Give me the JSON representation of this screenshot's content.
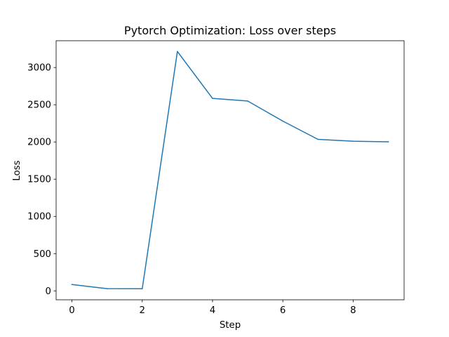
{
  "chart_data": {
    "type": "line",
    "title": "Pytorch Optimization: Loss over steps",
    "xlabel": "Step",
    "ylabel": "Loss",
    "x": [
      0,
      1,
      2,
      3,
      4,
      5,
      6,
      7,
      8,
      9
    ],
    "series": [
      {
        "values": [
          85,
          30,
          28,
          3215,
          2585,
          2550,
          2280,
          2035,
          2010,
          2002
        ],
        "color": "#1f77b4"
      }
    ],
    "xlim": [
      -0.45,
      9.45
    ],
    "ylim": [
      -120,
      3360
    ],
    "xticks": [
      0,
      2,
      4,
      6,
      8
    ],
    "xtick_labels": [
      "0",
      "2",
      "4",
      "6",
      "8"
    ],
    "yticks": [
      0,
      500,
      1000,
      1500,
      2000,
      2500,
      3000
    ],
    "ytick_labels": [
      "0",
      "500",
      "1000",
      "1500",
      "2000",
      "2500",
      "3000"
    ],
    "grid": false,
    "legend": "none"
  }
}
